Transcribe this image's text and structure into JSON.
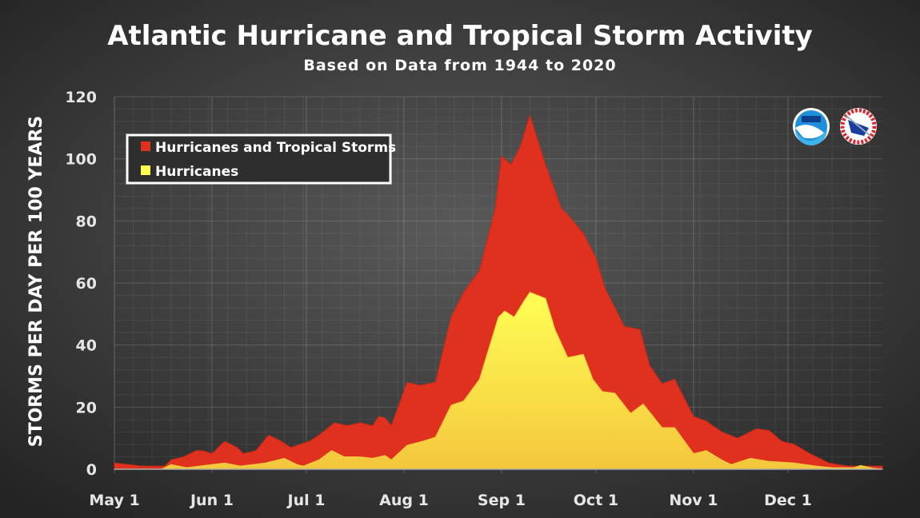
{
  "chart_data": {
    "type": "area",
    "title": "Atlantic Hurricane and Tropical Storm Activity",
    "subtitle": "Based on Data from 1944 to 2020",
    "xlabel": "",
    "ylabel": "STORMS PER DAY PER 100 YEARS",
    "x_unit": "days since May 1",
    "xlim": [
      0,
      244
    ],
    "ylim": [
      0,
      120
    ],
    "y_ticks": [
      0,
      20,
      40,
      60,
      80,
      100,
      120
    ],
    "x_ticks": [
      {
        "day": 0,
        "label": "May 1"
      },
      {
        "day": 31,
        "label": "Jun 1"
      },
      {
        "day": 61,
        "label": "Jul 1"
      },
      {
        "day": 92,
        "label": "Aug 1"
      },
      {
        "day": 123,
        "label": "Sep 1"
      },
      {
        "day": 153,
        "label": "Oct 1"
      },
      {
        "day": 184,
        "label": "Nov 1"
      },
      {
        "day": 214,
        "label": "Dec 1"
      }
    ],
    "grid": true,
    "legend_position": "top-left",
    "series": [
      {
        "name": "Hurricanes and Tropical Storms",
        "color": "#e0301e",
        "points": [
          [
            0,
            2
          ],
          [
            9,
            1
          ],
          [
            16,
            1
          ],
          [
            18,
            3
          ],
          [
            22,
            4
          ],
          [
            26,
            6
          ],
          [
            28,
            6
          ],
          [
            31,
            5
          ],
          [
            35,
            9
          ],
          [
            39,
            7
          ],
          [
            41,
            5
          ],
          [
            45,
            6
          ],
          [
            49,
            11
          ],
          [
            53,
            9
          ],
          [
            56,
            7
          ],
          [
            62,
            9
          ],
          [
            65,
            11
          ],
          [
            70,
            15
          ],
          [
            74,
            14
          ],
          [
            78,
            15
          ],
          [
            82,
            14
          ],
          [
            84,
            17
          ],
          [
            86,
            16.5
          ],
          [
            88,
            14
          ],
          [
            93,
            28
          ],
          [
            97,
            27
          ],
          [
            102,
            28
          ],
          [
            107,
            49
          ],
          [
            111,
            57
          ],
          [
            116,
            64
          ],
          [
            121,
            84
          ],
          [
            123,
            101
          ],
          [
            126,
            98
          ],
          [
            129,
            104
          ],
          [
            132,
            114
          ],
          [
            137,
            98
          ],
          [
            142,
            84
          ],
          [
            144,
            82
          ],
          [
            149,
            76
          ],
          [
            153,
            68
          ],
          [
            156,
            58
          ],
          [
            162,
            46
          ],
          [
            167,
            45
          ],
          [
            170,
            33.5
          ],
          [
            174,
            27.5
          ],
          [
            178,
            29
          ],
          [
            184,
            17
          ],
          [
            188,
            15.5
          ],
          [
            193,
            12
          ],
          [
            198,
            10
          ],
          [
            204,
            13
          ],
          [
            208,
            12.5
          ],
          [
            212,
            9
          ],
          [
            216,
            8
          ],
          [
            221,
            5
          ],
          [
            223,
            4
          ],
          [
            227,
            2
          ],
          [
            233,
            1
          ],
          [
            244,
            1
          ]
        ]
      },
      {
        "name": "Hurricanes",
        "color": "#ffff50",
        "points": [
          [
            0,
            0
          ],
          [
            15,
            0
          ],
          [
            18,
            1.5
          ],
          [
            23,
            0.5
          ],
          [
            35,
            2
          ],
          [
            40,
            1
          ],
          [
            48,
            2
          ],
          [
            54,
            3.5
          ],
          [
            58,
            1.5
          ],
          [
            60,
            1
          ],
          [
            65,
            3
          ],
          [
            69,
            6
          ],
          [
            73,
            4
          ],
          [
            78,
            4
          ],
          [
            82,
            3.5
          ],
          [
            86,
            4.4
          ],
          [
            88,
            3
          ],
          [
            93,
            7.7
          ],
          [
            98,
            9
          ],
          [
            102,
            10.3
          ],
          [
            107,
            20.6
          ],
          [
            111,
            22
          ],
          [
            116,
            29
          ],
          [
            122,
            49
          ],
          [
            124,
            51
          ],
          [
            127,
            49
          ],
          [
            130,
            54
          ],
          [
            132,
            57
          ],
          [
            137,
            55
          ],
          [
            140,
            45
          ],
          [
            144,
            36
          ],
          [
            149,
            37
          ],
          [
            152,
            29
          ],
          [
            155,
            25
          ],
          [
            159,
            24.5
          ],
          [
            164,
            18
          ],
          [
            168,
            21
          ],
          [
            174,
            13.4
          ],
          [
            178,
            13.4
          ],
          [
            184,
            5
          ],
          [
            188,
            6
          ],
          [
            193,
            3
          ],
          [
            196,
            1.5
          ],
          [
            202,
            3.5
          ],
          [
            208,
            2.5
          ],
          [
            216,
            2
          ],
          [
            223,
            1
          ],
          [
            228,
            0.5
          ],
          [
            235,
            0.5
          ],
          [
            237,
            1.2
          ],
          [
            241,
            0.3
          ],
          [
            244,
            0
          ]
        ]
      }
    ],
    "logos": [
      "NOAA",
      "NATIONAL WEATHER SERVICE"
    ]
  }
}
